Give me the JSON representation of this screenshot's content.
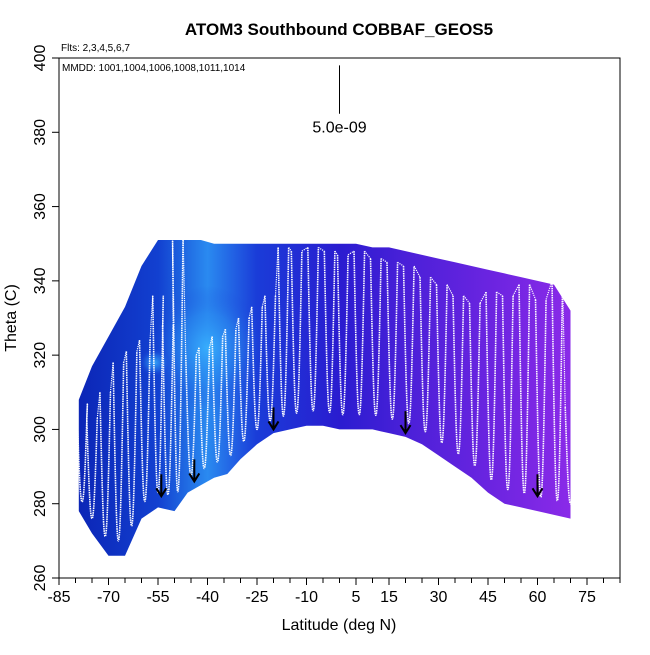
{
  "chart_data": {
    "type": "heatmap",
    "title": "ATOM3 Southbound COBBAF_GEOS5",
    "flights_note": "Flts: 2,3,4,5,6,7",
    "dates_note": "MMDD: 1001,1004,1006,1008,1011,1014",
    "xlabel": "Latitude (deg N)",
    "ylabel": "Theta (C)",
    "xlim": [
      -85,
      85
    ],
    "ylim": [
      260,
      400
    ],
    "x_ticks": [
      -85,
      -70,
      -55,
      -40,
      -25,
      -10,
      5,
      15,
      30,
      45,
      60,
      75
    ],
    "x_minor_ticks": [
      -80,
      -75,
      -65,
      -60,
      -50,
      -45,
      -35,
      -30,
      -20,
      -15,
      -5,
      0,
      10,
      20,
      25,
      35,
      40,
      50,
      55,
      65,
      70,
      80,
      85
    ],
    "y_ticks": [
      260,
      280,
      300,
      320,
      340,
      360,
      380,
      400
    ],
    "scale_label": "5.0e-09",
    "scale_bar": {
      "x": 0,
      "y_top": 398,
      "y_bottom": 385
    },
    "field_envelope": {
      "lat": [
        -79,
        -75,
        -70,
        -65,
        -60,
        -55,
        -50,
        -46,
        -42,
        -38,
        -34,
        -30,
        -25,
        -20,
        -15,
        -10,
        -5,
        0,
        5,
        10,
        15,
        20,
        25,
        30,
        35,
        40,
        45,
        50,
        55,
        60,
        65,
        70
      ],
      "theta_bottom": [
        278,
        272,
        266,
        266,
        276,
        279,
        278,
        283,
        285,
        287,
        288,
        292,
        296,
        299,
        300,
        301,
        301,
        300,
        300,
        300,
        299,
        298,
        296,
        293,
        290,
        287,
        283,
        280,
        279,
        278,
        277,
        276
      ],
      "theta_top": [
        308,
        317,
        325,
        333,
        344,
        351,
        351,
        351,
        351,
        350,
        350,
        350,
        350,
        350,
        350,
        350,
        350,
        350,
        350,
        349,
        349,
        348,
        347,
        346,
        345,
        344,
        343,
        342,
        341,
        340,
        339,
        332
      ]
    },
    "color_stops": [
      {
        "lat": -85,
        "color": "#0a1fb0"
      },
      {
        "lat": -55,
        "color": "#1240d0"
      },
      {
        "lat": -40,
        "color": "#2a8af0"
      },
      {
        "lat": -25,
        "color": "#1a3cd8"
      },
      {
        "lat": 0,
        "color": "#2a1cd0"
      },
      {
        "lat": 20,
        "color": "#4a20d8"
      },
      {
        "lat": 45,
        "color": "#6a24e0"
      },
      {
        "lat": 70,
        "color": "#8a2ae8"
      }
    ],
    "highlight_color": "#3ab4ff",
    "trace_color": "#ffffff",
    "arrow_color": "#000000",
    "tropopause_arrows": [
      {
        "lat": -54,
        "theta": 282
      },
      {
        "lat": -44,
        "theta": 286
      },
      {
        "lat": -20,
        "theta": 300
      },
      {
        "lat": 20,
        "theta": 299
      },
      {
        "lat": 60,
        "theta": 282
      }
    ],
    "profiles": [
      {
        "lat": -78,
        "theta_top": 307
      },
      {
        "lat": -75,
        "theta_top": 303
      },
      {
        "lat": -71,
        "theta_top": 310
      },
      {
        "lat": -67,
        "theta_top": 318
      },
      {
        "lat": -63,
        "theta_top": 321
      },
      {
        "lat": -59,
        "theta_top": 324
      },
      {
        "lat": -55,
        "theta_top": 336
      },
      {
        "lat": -52,
        "theta_top": 328
      },
      {
        "lat": -49,
        "theta_top": 352
      },
      {
        "lat": -45,
        "theta_top": 320
      },
      {
        "lat": -41,
        "theta_top": 322
      },
      {
        "lat": -37,
        "theta_top": 325
      },
      {
        "lat": -33,
        "theta_top": 327
      },
      {
        "lat": -29,
        "theta_top": 330
      },
      {
        "lat": -25,
        "theta_top": 333
      },
      {
        "lat": -21,
        "theta_top": 336
      },
      {
        "lat": -17,
        "theta_top": 349
      },
      {
        "lat": -13,
        "theta_top": 348
      },
      {
        "lat": -8,
        "theta_top": 349
      },
      {
        "lat": -3,
        "theta_top": 348
      },
      {
        "lat": 1,
        "theta_top": 347
      },
      {
        "lat": 6,
        "theta_top": 348
      },
      {
        "lat": 11,
        "theta_top": 346
      },
      {
        "lat": 16,
        "theta_top": 345
      },
      {
        "lat": 21,
        "theta_top": 344
      },
      {
        "lat": 26,
        "theta_top": 341
      },
      {
        "lat": 31,
        "theta_top": 339
      },
      {
        "lat": 36,
        "theta_top": 336
      },
      {
        "lat": 41,
        "theta_top": 334
      },
      {
        "lat": 46,
        "theta_top": 337
      },
      {
        "lat": 51,
        "theta_top": 336
      },
      {
        "lat": 56,
        "theta_top": 339
      },
      {
        "lat": 61,
        "theta_top": 335
      },
      {
        "lat": 66,
        "theta_top": 340
      },
      {
        "lat": 70,
        "theta_top": 306
      }
    ]
  }
}
